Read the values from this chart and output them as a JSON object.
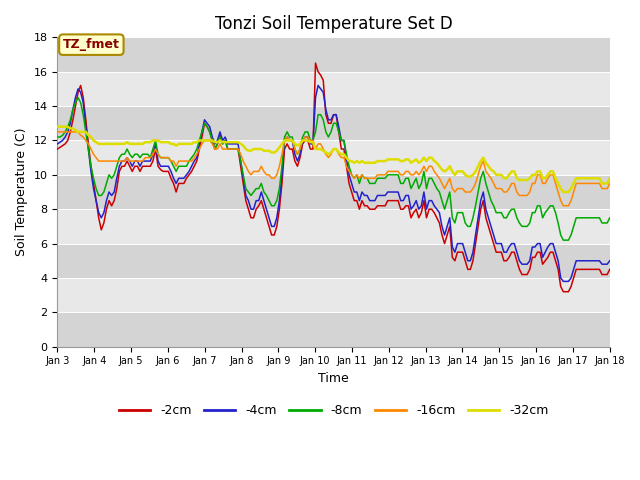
{
  "title": "Tonzi Soil Temperature Set D",
  "xlabel": "Time",
  "ylabel": "Soil Temperature (C)",
  "ylim": [
    0,
    18
  ],
  "yticks": [
    0,
    2,
    4,
    6,
    8,
    10,
    12,
    14,
    16,
    18
  ],
  "xtick_labels": [
    "Jan 3",
    "Jan 4",
    "Jan 5",
    "Jan 6",
    "Jan 7",
    "Jan 8",
    "Jan 9",
    "Jan 10",
    "Jan 11",
    "Jan 12",
    "Jan 13",
    "Jan 14",
    "Jan 15",
    "Jan 16",
    "Jan 17",
    "Jan 18"
  ],
  "legend_labels": [
    "-2cm",
    "-4cm",
    "-8cm",
    "-16cm",
    "-32cm"
  ],
  "line_colors": [
    "#cc0000",
    "#2222cc",
    "#00aa00",
    "#ff8800",
    "#dddd00"
  ],
  "annotation_text": "TZ_fmet",
  "annotation_color": "#880000",
  "annotation_bg": "#ffffcc",
  "annotation_border": "#aa8800",
  "bg_light": "#e8e8e8",
  "bg_dark": "#d4d4d4",
  "title_fontsize": 12,
  "axis_fontsize": 9,
  "tick_fontsize": 8,
  "y_2cm": [
    11.5,
    11.6,
    11.7,
    11.8,
    12.0,
    12.5,
    13.2,
    14.0,
    14.8,
    15.2,
    14.5,
    13.2,
    11.8,
    10.5,
    9.5,
    8.5,
    7.5,
    6.8,
    7.2,
    8.0,
    8.5,
    8.2,
    8.5,
    9.2,
    10.2,
    10.5,
    10.5,
    10.8,
    10.5,
    10.2,
    10.5,
    10.5,
    10.2,
    10.5,
    10.5,
    10.5,
    10.5,
    10.8,
    11.5,
    10.5,
    10.3,
    10.2,
    10.2,
    10.2,
    9.8,
    9.5,
    9.0,
    9.5,
    9.5,
    9.5,
    9.8,
    10.0,
    10.2,
    10.5,
    10.8,
    11.5,
    12.2,
    13.0,
    12.8,
    12.5,
    12.0,
    11.5,
    11.8,
    12.3,
    11.8,
    12.0,
    11.5,
    11.5,
    11.5,
    11.5,
    11.5,
    10.5,
    9.5,
    8.5,
    8.0,
    7.5,
    7.5,
    8.0,
    8.2,
    8.5,
    8.0,
    7.5,
    7.0,
    6.5,
    6.5,
    7.0,
    8.0,
    9.5,
    11.5,
    11.8,
    11.5,
    11.5,
    10.8,
    10.5,
    11.0,
    11.8,
    12.0,
    12.0,
    11.5,
    11.5,
    16.5,
    16.0,
    15.8,
    15.5,
    13.5,
    13.0,
    13.0,
    13.5,
    13.5,
    12.5,
    11.5,
    11.5,
    10.5,
    9.5,
    9.0,
    8.5,
    8.5,
    8.0,
    8.5,
    8.2,
    8.2,
    8.0,
    8.0,
    8.0,
    8.2,
    8.2,
    8.2,
    8.2,
    8.5,
    8.5,
    8.5,
    8.5,
    8.5,
    8.0,
    8.0,
    8.2,
    8.2,
    7.5,
    7.8,
    8.0,
    7.5,
    7.8,
    8.5,
    7.5,
    8.0,
    8.0,
    7.8,
    7.5,
    7.2,
    6.5,
    6.0,
    6.5,
    7.0,
    5.2,
    5.0,
    5.5,
    5.5,
    5.5,
    5.0,
    4.5,
    4.5,
    5.0,
    6.0,
    7.0,
    8.0,
    8.5,
    7.5,
    7.0,
    6.5,
    6.0,
    5.5,
    5.5,
    5.5,
    5.0,
    5.0,
    5.2,
    5.5,
    5.5,
    5.0,
    4.5,
    4.2,
    4.2,
    4.2,
    4.5,
    5.2,
    5.2,
    5.5,
    5.5,
    4.8,
    5.0,
    5.2,
    5.5,
    5.5,
    5.0,
    4.5,
    3.5,
    3.2,
    3.2,
    3.2,
    3.5,
    4.0,
    4.5,
    4.5,
    4.5,
    4.5,
    4.5,
    4.5,
    4.5,
    4.5,
    4.5,
    4.5,
    4.2,
    4.2,
    4.2,
    4.5
  ],
  "y_4cm": [
    11.8,
    11.9,
    12.0,
    12.2,
    12.5,
    13.0,
    13.8,
    14.5,
    15.0,
    14.8,
    14.2,
    12.8,
    11.5,
    10.2,
    9.2,
    8.5,
    7.8,
    7.5,
    7.8,
    8.5,
    9.0,
    8.8,
    9.0,
    9.8,
    10.5,
    10.8,
    10.8,
    11.0,
    10.8,
    10.5,
    10.8,
    10.8,
    10.5,
    10.8,
    10.8,
    10.8,
    10.8,
    11.2,
    11.8,
    10.8,
    10.5,
    10.5,
    10.5,
    10.5,
    10.2,
    9.8,
    9.5,
    9.8,
    9.8,
    9.8,
    10.0,
    10.2,
    10.5,
    10.8,
    11.0,
    11.8,
    12.5,
    13.2,
    13.0,
    12.8,
    12.2,
    11.8,
    12.0,
    12.5,
    12.0,
    12.2,
    11.8,
    11.8,
    11.8,
    11.8,
    11.8,
    10.8,
    9.8,
    8.8,
    8.5,
    8.0,
    8.0,
    8.5,
    8.5,
    9.0,
    8.5,
    8.0,
    7.5,
    7.0,
    7.0,
    7.5,
    8.5,
    10.0,
    12.0,
    12.2,
    12.0,
    12.0,
    11.2,
    10.8,
    11.2,
    12.0,
    12.2,
    12.2,
    11.8,
    11.8,
    14.5,
    15.2,
    15.0,
    14.8,
    13.8,
    13.2,
    13.2,
    13.5,
    13.5,
    12.8,
    12.0,
    12.0,
    11.0,
    10.0,
    9.5,
    9.0,
    9.0,
    8.5,
    9.0,
    8.8,
    8.8,
    8.5,
    8.5,
    8.5,
    8.8,
    8.8,
    8.8,
    8.8,
    9.0,
    9.0,
    9.0,
    9.0,
    9.0,
    8.5,
    8.5,
    8.8,
    8.8,
    8.0,
    8.2,
    8.5,
    8.0,
    8.2,
    9.0,
    8.0,
    8.5,
    8.5,
    8.2,
    8.0,
    7.8,
    7.0,
    6.5,
    7.0,
    7.5,
    5.8,
    5.5,
    6.0,
    6.0,
    6.0,
    5.5,
    5.0,
    5.0,
    5.5,
    6.5,
    7.5,
    8.5,
    9.0,
    8.0,
    7.5,
    7.0,
    6.5,
    6.0,
    6.0,
    6.0,
    5.5,
    5.5,
    5.8,
    6.0,
    6.0,
    5.5,
    5.0,
    4.8,
    4.8,
    4.8,
    5.0,
    5.8,
    5.8,
    6.0,
    6.0,
    5.2,
    5.5,
    5.8,
    6.0,
    6.0,
    5.5,
    5.0,
    4.0,
    3.8,
    3.8,
    3.8,
    4.0,
    4.5,
    5.0,
    5.0,
    5.0,
    5.0,
    5.0,
    5.0,
    5.0,
    5.0,
    5.0,
    5.0,
    4.8,
    4.8,
    4.8,
    5.0
  ],
  "y_8cm": [
    12.2,
    12.2,
    12.3,
    12.5,
    12.8,
    13.2,
    13.8,
    14.2,
    14.5,
    14.2,
    13.5,
    12.5,
    11.5,
    10.5,
    9.8,
    9.2,
    8.8,
    8.8,
    9.0,
    9.5,
    10.0,
    9.8,
    10.0,
    10.5,
    11.0,
    11.2,
    11.2,
    11.5,
    11.2,
    11.0,
    11.2,
    11.2,
    11.0,
    11.2,
    11.2,
    11.2,
    11.0,
    11.5,
    12.0,
    11.2,
    11.0,
    11.0,
    11.0,
    11.0,
    10.8,
    10.5,
    10.2,
    10.5,
    10.5,
    10.5,
    10.5,
    10.8,
    11.0,
    11.2,
    11.5,
    12.0,
    12.5,
    13.0,
    12.8,
    12.5,
    12.0,
    11.5,
    11.8,
    12.2,
    11.8,
    12.0,
    11.5,
    11.5,
    11.5,
    11.5,
    11.5,
    10.8,
    10.0,
    9.2,
    9.0,
    8.8,
    9.0,
    9.2,
    9.2,
    9.5,
    9.0,
    8.8,
    8.5,
    8.2,
    8.2,
    8.5,
    9.2,
    10.5,
    12.2,
    12.5,
    12.2,
    12.2,
    11.5,
    11.2,
    11.5,
    12.2,
    12.5,
    12.5,
    12.0,
    12.0,
    12.5,
    13.5,
    13.5,
    13.2,
    12.5,
    12.2,
    12.5,
    13.0,
    13.0,
    12.5,
    12.0,
    12.0,
    11.2,
    10.5,
    10.0,
    9.8,
    10.0,
    9.5,
    10.0,
    9.8,
    9.8,
    9.5,
    9.5,
    9.5,
    9.8,
    9.8,
    9.8,
    9.8,
    10.0,
    10.0,
    10.0,
    10.0,
    10.0,
    9.5,
    9.5,
    9.8,
    9.8,
    9.2,
    9.5,
    9.8,
    9.2,
    9.5,
    10.2,
    9.2,
    9.8,
    9.8,
    9.5,
    9.2,
    9.0,
    8.5,
    8.0,
    8.5,
    9.0,
    7.5,
    7.2,
    7.8,
    7.8,
    7.8,
    7.2,
    7.0,
    7.0,
    7.5,
    8.2,
    9.0,
    9.8,
    10.2,
    9.5,
    9.0,
    8.5,
    8.2,
    7.8,
    7.8,
    7.8,
    7.5,
    7.5,
    7.8,
    8.0,
    8.0,
    7.5,
    7.2,
    7.0,
    7.0,
    7.0,
    7.2,
    7.8,
    7.8,
    8.2,
    8.2,
    7.5,
    7.8,
    8.0,
    8.2,
    8.2,
    7.8,
    7.2,
    6.5,
    6.2,
    6.2,
    6.2,
    6.5,
    7.0,
    7.5,
    7.5,
    7.5,
    7.5,
    7.5,
    7.5,
    7.5,
    7.5,
    7.5,
    7.5,
    7.2,
    7.2,
    7.2,
    7.5
  ],
  "y_16cm": [
    12.5,
    12.5,
    12.5,
    12.5,
    12.5,
    12.5,
    12.5,
    12.5,
    12.5,
    12.3,
    12.2,
    12.0,
    11.8,
    11.5,
    11.2,
    11.0,
    10.8,
    10.8,
    10.8,
    10.8,
    10.8,
    10.8,
    10.8,
    10.8,
    10.8,
    10.8,
    10.8,
    11.0,
    10.8,
    10.8,
    10.8,
    10.8,
    10.8,
    10.8,
    11.0,
    11.0,
    11.0,
    11.2,
    11.5,
    11.2,
    11.0,
    11.0,
    11.0,
    11.0,
    10.8,
    10.8,
    10.5,
    10.8,
    10.8,
    10.8,
    10.8,
    10.8,
    10.8,
    11.0,
    11.2,
    11.5,
    11.8,
    12.0,
    12.0,
    12.0,
    11.8,
    11.5,
    11.5,
    11.8,
    11.5,
    11.5,
    11.5,
    11.5,
    11.5,
    11.5,
    11.5,
    11.2,
    10.8,
    10.5,
    10.2,
    10.0,
    10.2,
    10.2,
    10.2,
    10.5,
    10.2,
    10.0,
    10.0,
    9.8,
    9.8,
    10.0,
    10.5,
    11.2,
    12.0,
    12.2,
    12.0,
    12.0,
    11.5,
    11.2,
    11.5,
    12.0,
    12.2,
    12.2,
    12.0,
    12.0,
    11.5,
    11.8,
    11.8,
    11.5,
    11.2,
    11.0,
    11.2,
    11.5,
    11.5,
    11.2,
    11.0,
    11.0,
    10.5,
    10.2,
    10.0,
    9.8,
    10.0,
    9.8,
    10.0,
    9.8,
    9.8,
    9.8,
    9.8,
    9.8,
    10.0,
    10.0,
    10.0,
    10.0,
    10.2,
    10.2,
    10.2,
    10.2,
    10.2,
    10.0,
    10.0,
    10.2,
    10.2,
    10.0,
    10.0,
    10.2,
    10.0,
    10.2,
    10.5,
    10.2,
    10.5,
    10.5,
    10.2,
    10.0,
    9.8,
    9.5,
    9.2,
    9.5,
    9.8,
    9.2,
    9.0,
    9.2,
    9.2,
    9.2,
    9.0,
    9.0,
    9.0,
    9.2,
    9.5,
    10.0,
    10.5,
    10.8,
    10.2,
    10.0,
    9.8,
    9.5,
    9.2,
    9.2,
    9.2,
    9.0,
    9.0,
    9.2,
    9.5,
    9.5,
    9.0,
    8.8,
    8.8,
    8.8,
    8.8,
    9.0,
    9.5,
    9.5,
    10.0,
    10.0,
    9.5,
    9.5,
    9.8,
    10.0,
    10.0,
    9.5,
    9.0,
    8.5,
    8.2,
    8.2,
    8.2,
    8.5,
    9.0,
    9.5,
    9.5,
    9.5,
    9.5,
    9.5,
    9.5,
    9.5,
    9.5,
    9.5,
    9.5,
    9.2,
    9.2,
    9.2,
    9.5
  ],
  "y_32cm": [
    12.8,
    12.8,
    12.8,
    12.8,
    12.8,
    12.7,
    12.7,
    12.6,
    12.5,
    12.5,
    12.5,
    12.5,
    12.3,
    12.2,
    12.0,
    11.9,
    11.8,
    11.8,
    11.8,
    11.8,
    11.8,
    11.8,
    11.8,
    11.8,
    11.8,
    11.8,
    11.8,
    11.9,
    11.8,
    11.8,
    11.8,
    11.8,
    11.8,
    11.8,
    11.9,
    11.9,
    11.9,
    12.0,
    12.0,
    12.0,
    11.9,
    11.9,
    11.9,
    11.9,
    11.8,
    11.8,
    11.7,
    11.8,
    11.8,
    11.8,
    11.8,
    11.8,
    11.8,
    11.9,
    11.9,
    12.0,
    12.0,
    12.0,
    12.0,
    12.0,
    12.0,
    11.9,
    11.9,
    12.0,
    11.9,
    11.9,
    11.9,
    11.9,
    11.9,
    11.9,
    11.9,
    11.8,
    11.7,
    11.5,
    11.4,
    11.4,
    11.5,
    11.5,
    11.5,
    11.5,
    11.4,
    11.4,
    11.4,
    11.3,
    11.3,
    11.4,
    11.6,
    11.8,
    12.0,
    12.0,
    12.0,
    12.0,
    11.8,
    11.7,
    11.8,
    12.0,
    12.0,
    12.0,
    11.9,
    11.9,
    11.5,
    11.5,
    11.5,
    11.4,
    11.3,
    11.2,
    11.3,
    11.5,
    11.5,
    11.3,
    11.2,
    11.2,
    11.0,
    10.8,
    10.8,
    10.7,
    10.8,
    10.7,
    10.8,
    10.7,
    10.7,
    10.7,
    10.7,
    10.7,
    10.8,
    10.8,
    10.8,
    10.8,
    10.9,
    10.9,
    10.9,
    10.9,
    10.9,
    10.8,
    10.8,
    10.9,
    10.9,
    10.7,
    10.8,
    10.9,
    10.7,
    10.8,
    11.0,
    10.8,
    11.0,
    11.0,
    10.8,
    10.7,
    10.5,
    10.3,
    10.2,
    10.3,
    10.5,
    10.2,
    10.0,
    10.2,
    10.2,
    10.2,
    10.0,
    9.9,
    9.9,
    10.0,
    10.2,
    10.5,
    10.8,
    11.0,
    10.7,
    10.5,
    10.3,
    10.2,
    10.0,
    10.0,
    10.0,
    9.8,
    9.8,
    10.0,
    10.2,
    10.2,
    9.8,
    9.7,
    9.7,
    9.7,
    9.7,
    9.8,
    10.0,
    10.0,
    10.2,
    10.2,
    9.8,
    9.8,
    10.0,
    10.2,
    10.2,
    9.8,
    9.5,
    9.2,
    9.0,
    9.0,
    9.0,
    9.2,
    9.5,
    9.8,
    9.8,
    9.8,
    9.8,
    9.8,
    9.8,
    9.8,
    9.8,
    9.8,
    9.8,
    9.5,
    9.5,
    9.5,
    9.8
  ]
}
